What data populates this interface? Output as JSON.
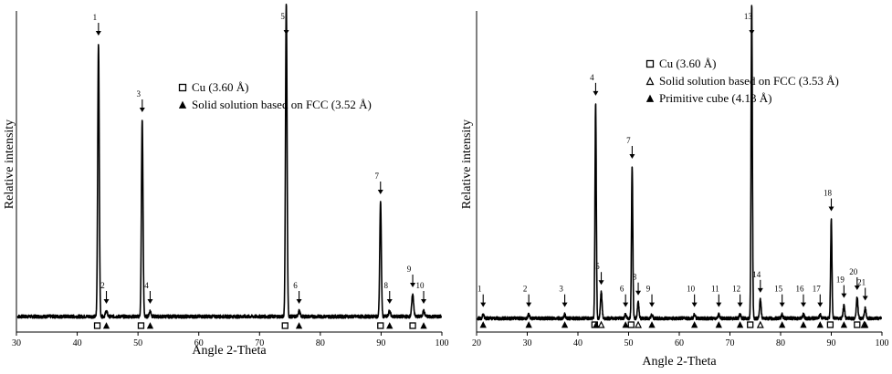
{
  "chart_data": [
    {
      "type": "line",
      "title": "",
      "xlabel": "Angle 2-Theta",
      "ylabel": "Relative intensity",
      "xlim": [
        30,
        100
      ],
      "x_ticks": [
        30,
        40,
        50,
        60,
        70,
        80,
        90,
        100
      ],
      "grid": false,
      "legend_position": "top-center",
      "legend": [
        {
          "marker": "open-square",
          "label": "Cu (3.60 Å)"
        },
        {
          "marker": "filled-triangle",
          "label": "Solid solution based on FCC (3.52 Å)"
        }
      ],
      "baseline": 0.04,
      "peaks": [
        {
          "label": "1",
          "x": 43.5,
          "height": 1.0
        },
        {
          "label": "2",
          "x": 44.8,
          "height": 0.02
        },
        {
          "label": "3",
          "x": 50.7,
          "height": 0.72
        },
        {
          "label": "4",
          "x": 52.0,
          "height": 0.02
        },
        {
          "label": "5",
          "x": 74.4,
          "height": 1.15
        },
        {
          "label": "6",
          "x": 76.5,
          "height": 0.02
        },
        {
          "label": "7",
          "x": 89.9,
          "height": 0.42
        },
        {
          "label": "8",
          "x": 91.4,
          "height": 0.02
        },
        {
          "label": "9",
          "x": 95.2,
          "height": 0.08
        },
        {
          "label": "10",
          "x": 97.0,
          "height": 0.02
        }
      ],
      "markers": [
        {
          "x": 43.3,
          "type": "open-square"
        },
        {
          "x": 44.8,
          "type": "filled-triangle"
        },
        {
          "x": 50.5,
          "type": "open-square"
        },
        {
          "x": 52.0,
          "type": "filled-triangle"
        },
        {
          "x": 74.2,
          "type": "open-square"
        },
        {
          "x": 76.5,
          "type": "filled-triangle"
        },
        {
          "x": 89.9,
          "type": "open-square"
        },
        {
          "x": 91.4,
          "type": "filled-triangle"
        },
        {
          "x": 95.2,
          "type": "open-square"
        },
        {
          "x": 97.0,
          "type": "filled-triangle"
        }
      ]
    },
    {
      "type": "line",
      "title": "",
      "xlabel": "Angle 2-Theta",
      "ylabel": "Relative intensity",
      "xlim": [
        20,
        100
      ],
      "x_ticks": [
        20,
        30,
        40,
        50,
        60,
        70,
        80,
        90,
        100
      ],
      "grid": false,
      "legend_position": "top-center",
      "legend": [
        {
          "marker": "open-square",
          "label": "Cu (3.60 Å)"
        },
        {
          "marker": "open-triangle",
          "label": "Solid solution based on FCC (3.53 Å)"
        },
        {
          "marker": "filled-triangle",
          "label": "Primitive cube (4.13 Å)"
        }
      ],
      "baseline": 0.03,
      "peaks": [
        {
          "label": "1",
          "x": 21.3,
          "height": 0.015
        },
        {
          "label": "2",
          "x": 30.3,
          "height": 0.015
        },
        {
          "label": "3",
          "x": 37.4,
          "height": 0.015
        },
        {
          "label": "4",
          "x": 43.5,
          "height": 0.82
        },
        {
          "label": "5",
          "x": 44.6,
          "height": 0.1
        },
        {
          "label": "6",
          "x": 49.4,
          "height": 0.015
        },
        {
          "label": "7",
          "x": 50.7,
          "height": 0.58
        },
        {
          "label": "8",
          "x": 51.9,
          "height": 0.06
        },
        {
          "label": "9",
          "x": 54.6,
          "height": 0.015
        },
        {
          "label": "10",
          "x": 63.0,
          "height": 0.015
        },
        {
          "label": "11",
          "x": 67.8,
          "height": 0.015
        },
        {
          "label": "12",
          "x": 72.0,
          "height": 0.015
        },
        {
          "label": "13",
          "x": 74.3,
          "height": 1.2
        },
        {
          "label": "14",
          "x": 76.0,
          "height": 0.07
        },
        {
          "label": "15",
          "x": 80.3,
          "height": 0.015
        },
        {
          "label": "16",
          "x": 84.5,
          "height": 0.015
        },
        {
          "label": "17",
          "x": 87.8,
          "height": 0.015
        },
        {
          "label": "18",
          "x": 90.0,
          "height": 0.38
        },
        {
          "label": "19",
          "x": 92.5,
          "height": 0.05
        },
        {
          "label": "20",
          "x": 95.1,
          "height": 0.08
        },
        {
          "label": "21",
          "x": 96.7,
          "height": 0.04
        }
      ],
      "markers": [
        {
          "x": 21.3,
          "type": "filled-triangle"
        },
        {
          "x": 30.3,
          "type": "filled-triangle"
        },
        {
          "x": 37.4,
          "type": "filled-triangle"
        },
        {
          "x": 43.3,
          "type": "open-square"
        },
        {
          "x": 43.6,
          "type": "filled-triangle"
        },
        {
          "x": 44.6,
          "type": "open-triangle"
        },
        {
          "x": 49.4,
          "type": "filled-triangle"
        },
        {
          "x": 50.5,
          "type": "open-square"
        },
        {
          "x": 51.9,
          "type": "open-triangle"
        },
        {
          "x": 54.6,
          "type": "filled-triangle"
        },
        {
          "x": 63.0,
          "type": "filled-triangle"
        },
        {
          "x": 67.8,
          "type": "filled-triangle"
        },
        {
          "x": 72.0,
          "type": "filled-triangle"
        },
        {
          "x": 74.0,
          "type": "open-square"
        },
        {
          "x": 76.0,
          "type": "open-triangle"
        },
        {
          "x": 80.3,
          "type": "filled-triangle"
        },
        {
          "x": 84.5,
          "type": "filled-triangle"
        },
        {
          "x": 87.8,
          "type": "filled-triangle"
        },
        {
          "x": 89.8,
          "type": "open-square"
        },
        {
          "x": 92.5,
          "type": "filled-triangle"
        },
        {
          "x": 95.1,
          "type": "open-square"
        },
        {
          "x": 96.5,
          "type": "open-triangle"
        },
        {
          "x": 96.7,
          "type": "filled-triangle"
        }
      ]
    }
  ]
}
